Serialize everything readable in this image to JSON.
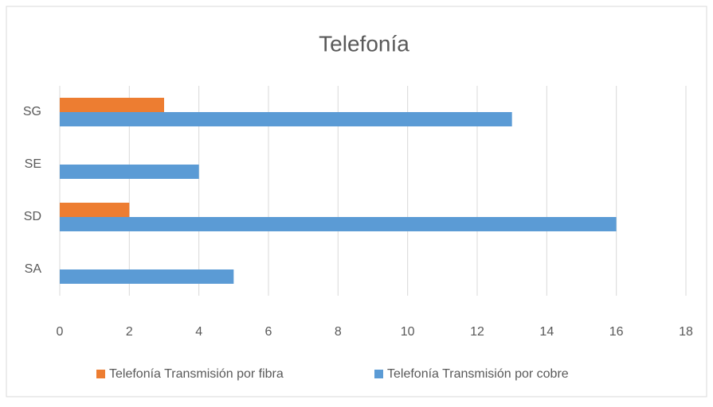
{
  "chart_data": {
    "type": "hbar",
    "title": "Telefonía",
    "categories": [
      "SA",
      "SD",
      "SE",
      "SG"
    ],
    "series": [
      {
        "name": "Telefonía Transmisión por fibra",
        "color": "#ed7d31",
        "values": [
          0,
          2,
          0,
          3
        ]
      },
      {
        "name": "Telefonía Transmisión por cobre",
        "color": "#5b9bd5",
        "values": [
          5,
          16,
          4,
          13
        ]
      }
    ],
    "xlim": [
      0,
      18
    ],
    "xticks": [
      0,
      2,
      4,
      6,
      8,
      10,
      12,
      14,
      16,
      18
    ],
    "grid": true,
    "legend": "bottom"
  }
}
